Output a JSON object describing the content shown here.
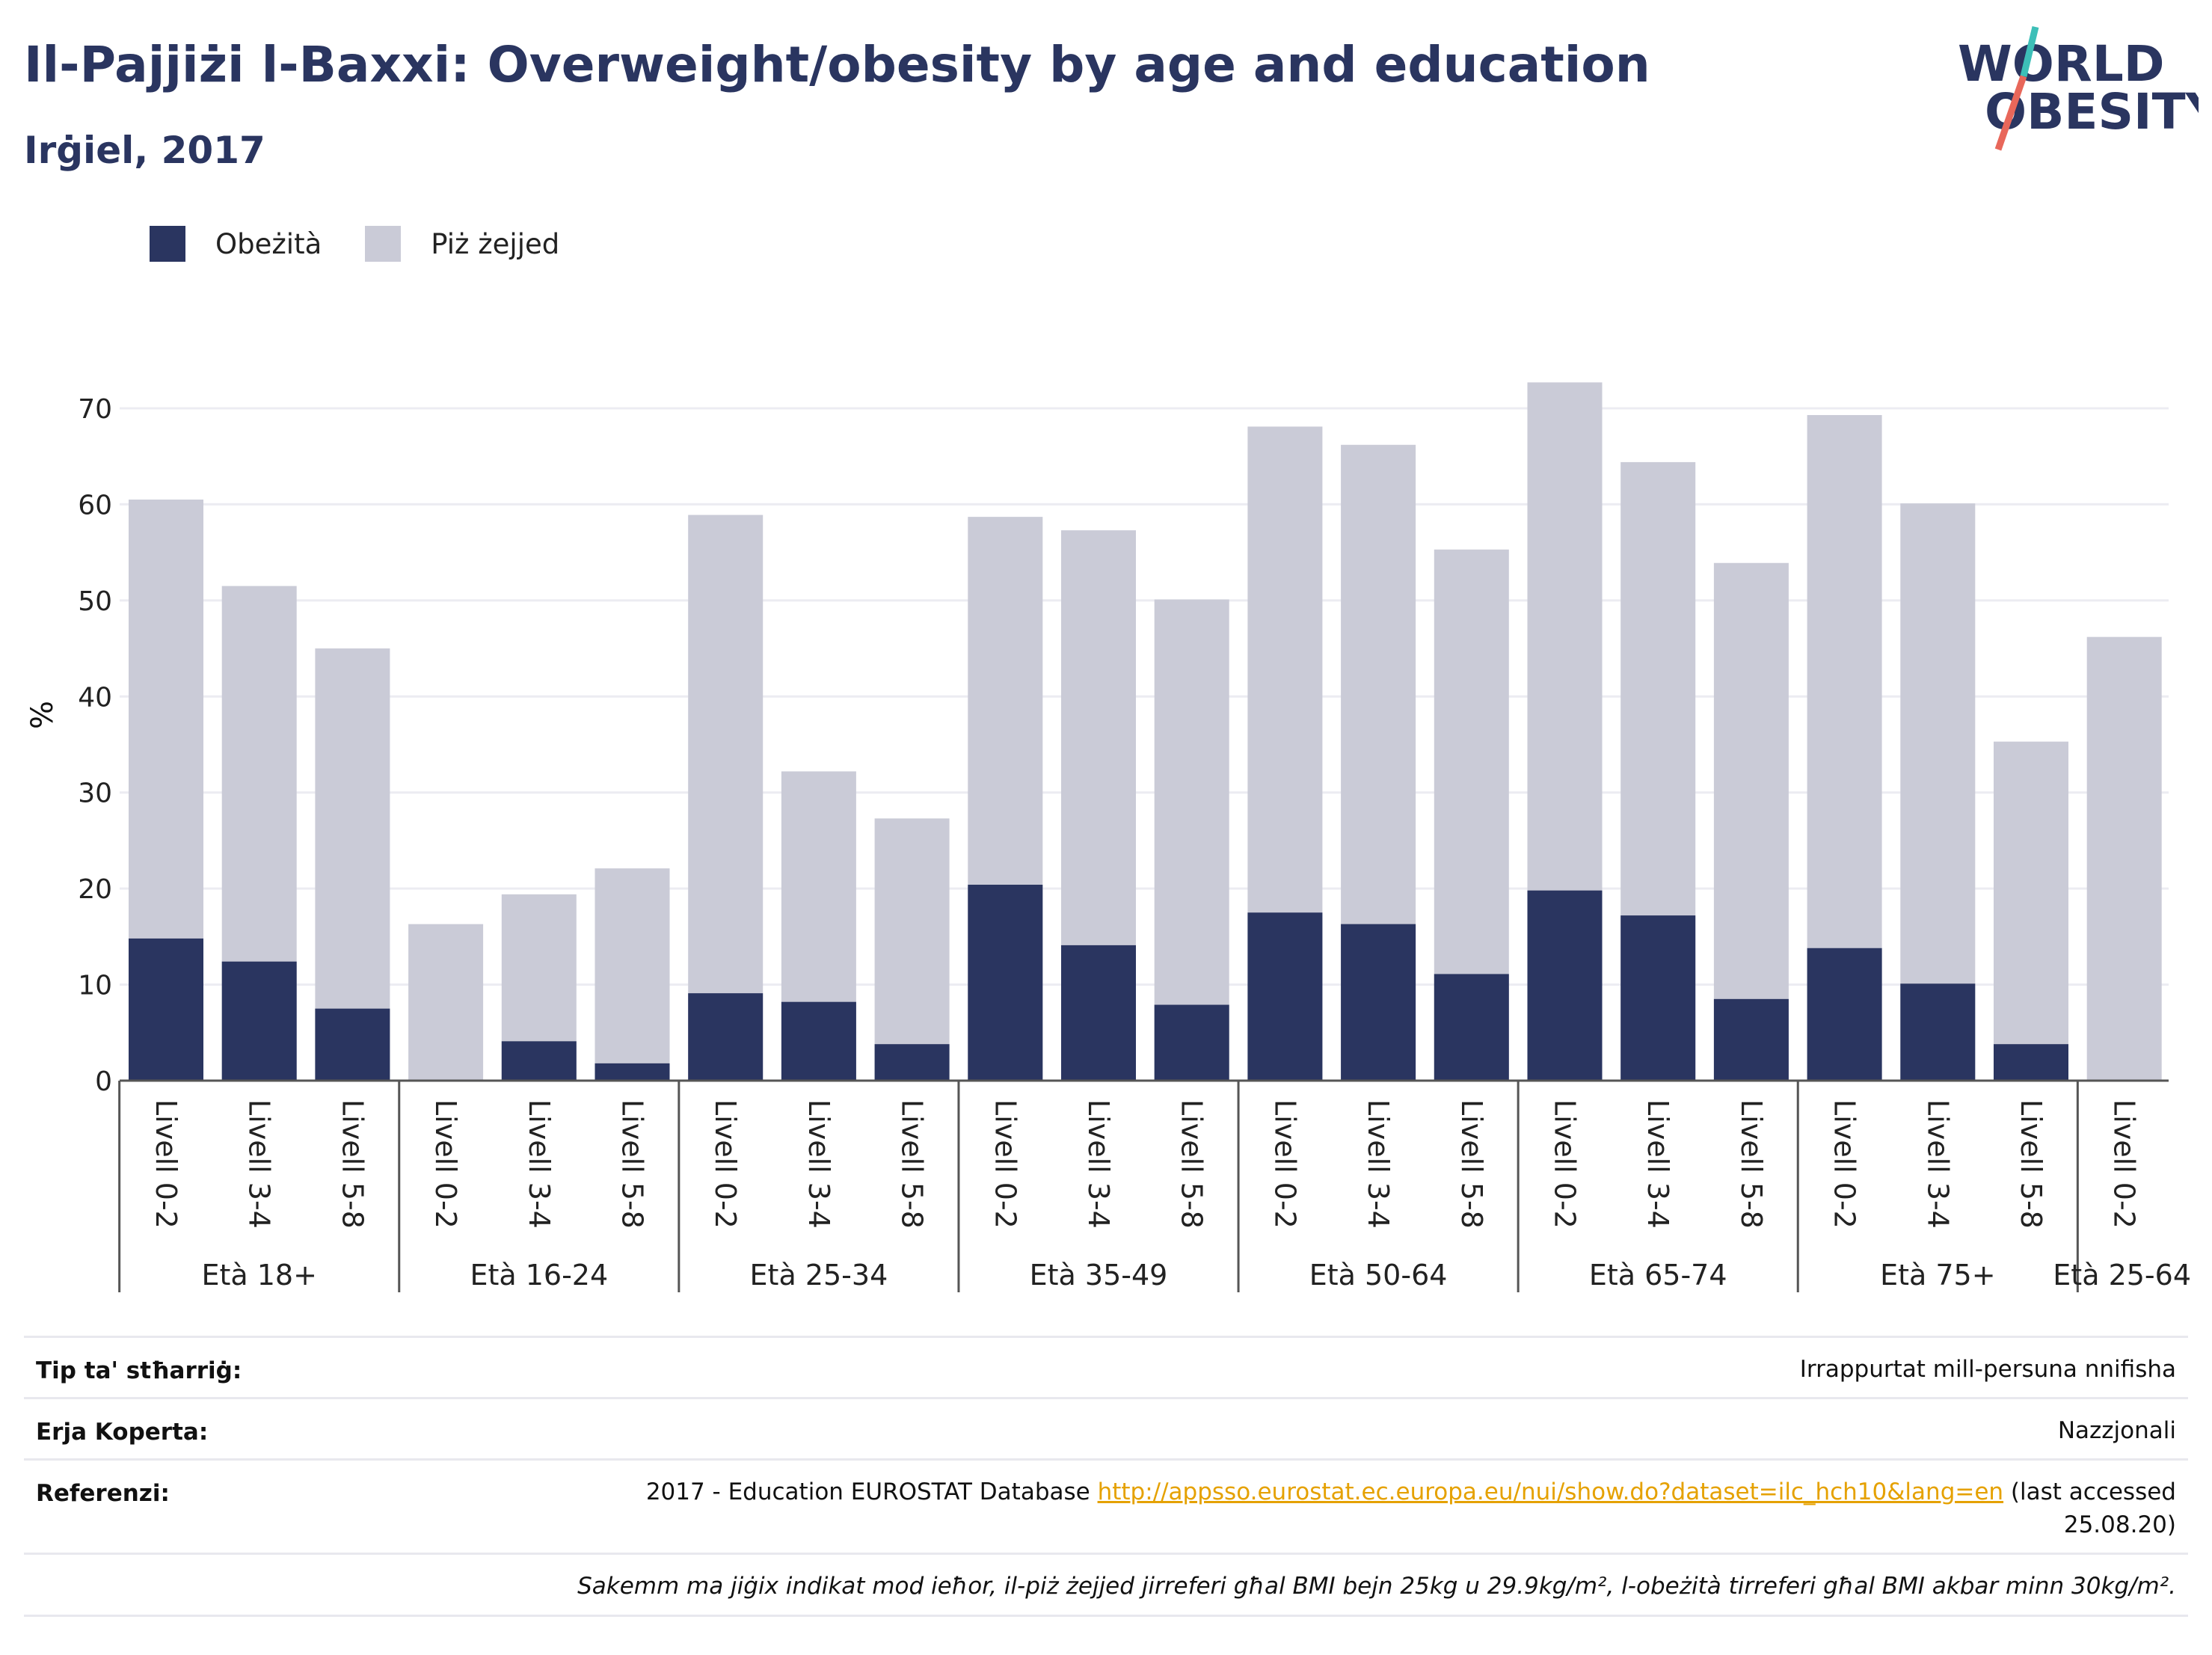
{
  "header": {
    "title": "Il-Pajjiżi l-Baxxi: Overweight/obesity by age and education",
    "subtitle": "Irġiel, 2017"
  },
  "logo": {
    "line1": "WORLD",
    "line2": "OBESITY",
    "colors": {
      "text": "#2a3560",
      "slash_top": "#3dbfb8",
      "slash_bottom": "#e8675a"
    }
  },
  "legend": {
    "items": [
      {
        "label": "Obeżità",
        "color": "#2a3560"
      },
      {
        "label": "Piż żejjed",
        "color": "#cacbd7"
      }
    ]
  },
  "chart_data": {
    "type": "bar",
    "stacked": false,
    "overlay": true,
    "ylabel": "%",
    "ylim": [
      0,
      75
    ],
    "yticks": [
      0,
      10,
      20,
      30,
      40,
      50,
      60,
      70
    ],
    "grid": true,
    "legend_position": "top-left",
    "groups": [
      {
        "label": "Età 18+",
        "categories": [
          "Livell 0-2",
          "Livell 3-4",
          "Livell 5-8"
        ]
      },
      {
        "label": "Età 16-24",
        "categories": [
          "Livell 0-2",
          "Livell 3-4",
          "Livell 5-8"
        ]
      },
      {
        "label": "Età 25-34",
        "categories": [
          "Livell 0-2",
          "Livell 3-4",
          "Livell 5-8"
        ]
      },
      {
        "label": "Età 35-49",
        "categories": [
          "Livell 0-2",
          "Livell 3-4",
          "Livell 5-8"
        ]
      },
      {
        "label": "Età 50-64",
        "categories": [
          "Livell 0-2",
          "Livell 3-4",
          "Livell 5-8"
        ]
      },
      {
        "label": "Età 65-74",
        "categories": [
          "Livell 0-2",
          "Livell 3-4",
          "Livell 5-8"
        ]
      },
      {
        "label": "Età 75+",
        "categories": [
          "Livell 0-2",
          "Livell 3-4",
          "Livell 5-8"
        ]
      },
      {
        "label": "Età 25-64",
        "categories": [
          "Livell 0-2"
        ]
      }
    ],
    "series": [
      {
        "name": "Piż żejjed",
        "color": "#cacbd7",
        "values": [
          60.5,
          51.5,
          45.0,
          16.3,
          19.4,
          22.1,
          58.9,
          32.2,
          27.3,
          58.7,
          57.3,
          50.1,
          68.1,
          66.2,
          55.3,
          72.7,
          64.4,
          53.9,
          69.3,
          60.1,
          35.3,
          46.2
        ]
      },
      {
        "name": "Obeżità",
        "color": "#2a3560",
        "values": [
          14.8,
          12.4,
          7.5,
          0,
          4.1,
          1.8,
          9.1,
          8.2,
          3.8,
          20.4,
          14.1,
          7.9,
          17.5,
          16.3,
          11.1,
          19.8,
          17.2,
          8.5,
          13.8,
          10.1,
          3.8,
          0
        ]
      }
    ]
  },
  "info": {
    "type_label": "Tip ta' stħarriġ:",
    "type_value": "Irrappurtat mill-persuna nnifisha",
    "area_label": "Erja Koperta:",
    "area_value": "Nazzjonali",
    "ref_label": "Referenzi:",
    "ref_prefix": "2017 - Education EUROSTAT Database ",
    "ref_link": "http://appsso.eurostat.ec.europa.eu/nui/show.do?dataset=ilc_hch10&lang=en",
    "ref_suffix": " (last accessed 25.08.20)",
    "note": "Sakemm ma jiġix indikat mod ieħor, il-piż żejjed jirreferi għal BMI bejn 25kg u 29.9kg/m², l-obeżità tirreferi għal BMI akbar minn 30kg/m²."
  }
}
